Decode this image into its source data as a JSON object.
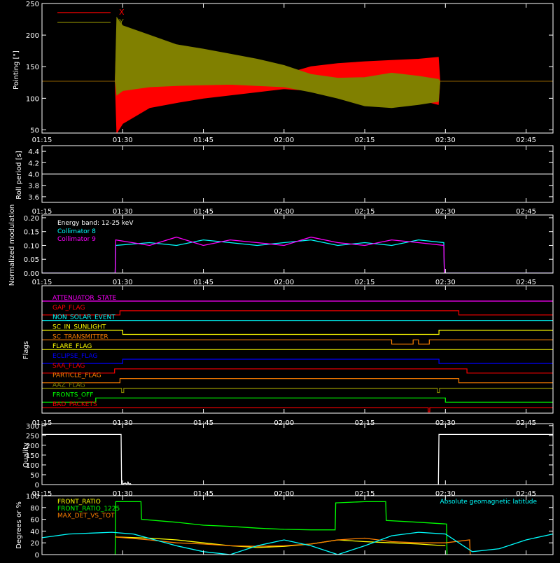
{
  "x_axis": {
    "min": 75,
    "max": 170,
    "ticks": [
      {
        "v": 75,
        "label": "01:15"
      },
      {
        "v": 90,
        "label": "01:30"
      },
      {
        "v": 105,
        "label": "01:45"
      },
      {
        "v": 120,
        "label": "02:00"
      },
      {
        "v": 135,
        "label": "02:15"
      },
      {
        "v": 150,
        "label": "02:30"
      },
      {
        "v": 165,
        "label": "02:45"
      }
    ]
  },
  "chart_data": [
    {
      "id": "pointing",
      "type": "area",
      "ylabel": "Pointing [\"]",
      "ylim": [
        45,
        250
      ],
      "yticks": [
        50,
        100,
        150,
        200,
        250
      ],
      "legend": [
        "X",
        "Y"
      ],
      "series": [
        {
          "name": "X",
          "color": "#ff0000",
          "x": [
            72,
            88.6,
            88.9,
            90,
            95,
            100,
            105,
            110,
            115,
            120,
            125,
            130,
            135,
            140,
            145,
            148.7,
            149,
            172
          ],
          "upper": [
            127,
            127,
            210,
            185,
            170,
            160,
            150,
            142,
            140,
            138,
            150,
            155,
            158,
            160,
            162,
            165,
            127,
            127
          ],
          "lower": [
            127,
            127,
            45,
            60,
            85,
            93,
            100,
            105,
            110,
            115,
            112,
            108,
            103,
            100,
            98,
            90,
            127,
            127
          ]
        },
        {
          "name": "Y",
          "color": "#808000",
          "x": [
            72,
            88.6,
            88.9,
            90,
            95,
            100,
            105,
            110,
            115,
            120,
            125,
            130,
            135,
            140,
            145,
            148.7,
            149,
            172
          ],
          "upper": [
            127,
            127,
            228,
            215,
            200,
            185,
            178,
            170,
            162,
            152,
            138,
            132,
            133,
            140,
            135,
            130,
            127,
            127
          ],
          "lower": [
            127,
            127,
            105,
            112,
            118,
            120,
            121,
            122,
            120,
            118,
            110,
            100,
            88,
            85,
            90,
            95,
            127,
            127
          ]
        }
      ]
    },
    {
      "id": "roll",
      "type": "line",
      "ylabel": "Roll period [s]",
      "ylim": [
        3.5,
        4.5
      ],
      "yticks": [
        3.6,
        3.8,
        4.0,
        4.2,
        4.4
      ],
      "ytick_labels": [
        "3.6",
        "3.8",
        "4.0",
        "4.2",
        "4.4"
      ],
      "series": [
        {
          "name": "",
          "color": "#ffffff",
          "x": [
            72,
            172
          ],
          "y": [
            4.0,
            4.0
          ]
        }
      ]
    },
    {
      "id": "modulation",
      "type": "line",
      "ylabel": "Normalized modulation",
      "ylim": [
        0,
        0.21
      ],
      "yticks": [
        0,
        0.05,
        0.1,
        0.15,
        0.2
      ],
      "ytick_labels": [
        "0.00",
        "0.05",
        "0.10",
        "0.15",
        "0.20"
      ],
      "annotation": "Energy band: 12-25 keV",
      "series": [
        {
          "name": "Collimator 8",
          "color": "#00ffff",
          "x": [
            72,
            88.6,
            88.7,
            95,
            100,
            105,
            110,
            115,
            120,
            125,
            130,
            135,
            140,
            145,
            149.7,
            149.8,
            172
          ],
          "y": [
            0,
            0,
            0.1,
            0.11,
            0.1,
            0.12,
            0.11,
            0.1,
            0.11,
            0.12,
            0.1,
            0.11,
            0.1,
            0.12,
            0.11,
            0,
            0
          ]
        },
        {
          "name": "Collimator 9",
          "color": "#ff00ff",
          "x": [
            72,
            88.6,
            88.7,
            95,
            100,
            105,
            110,
            115,
            120,
            125,
            130,
            135,
            140,
            145,
            149.7,
            149.8,
            172
          ],
          "y": [
            0,
            0,
            0.12,
            0.1,
            0.13,
            0.1,
            0.12,
            0.11,
            0.1,
            0.13,
            0.11,
            0.1,
            0.12,
            0.11,
            0.1,
            0,
            0
          ]
        }
      ]
    },
    {
      "id": "flags",
      "type": "line",
      "ylabel": "Flags",
      "series": [
        {
          "name": "ATTENUATOR_STATE",
          "color": "#ff00ff",
          "x": [
            72,
            172
          ],
          "y": [
            0,
            0
          ]
        },
        {
          "name": "GAP_FLAG",
          "color": "#ff0000",
          "x": [
            72,
            89.5,
            89.5,
            152.5,
            152.5,
            172
          ],
          "y": [
            1,
            1,
            0,
            0,
            1,
            1
          ]
        },
        {
          "name": "NON_SOLAR_EVENT",
          "color": "#00ffff",
          "x": [
            72,
            172
          ],
          "y": [
            0,
            0
          ]
        },
        {
          "name": "SC_IN_SUNLIGHT",
          "color": "#ffff00",
          "x": [
            72,
            90,
            90,
            148.8,
            148.8,
            172
          ],
          "y": [
            0,
            0,
            1,
            1,
            0,
            0
          ]
        },
        {
          "name": "SC_TRANSMITTER",
          "color": "#ff8000",
          "x": [
            72,
            140,
            140,
            144,
            144,
            145,
            145,
            147,
            147,
            172
          ],
          "y": [
            0,
            0,
            1,
            1,
            0,
            0,
            1,
            1,
            0,
            0
          ]
        },
        {
          "name": "FLARE_FLAG",
          "color": "#ffff00",
          "x": [
            72,
            172
          ],
          "y": [
            0,
            0
          ]
        },
        {
          "name": "ECLIPSE_FLAG",
          "color": "#0000ff",
          "x": [
            72,
            90,
            90,
            148.8,
            148.8,
            172
          ],
          "y": [
            1,
            1,
            0,
            0,
            1,
            1
          ]
        },
        {
          "name": "SAA_FLAG",
          "color": "#ff0000",
          "x": [
            72,
            88.5,
            88.5,
            154,
            154,
            172
          ],
          "y": [
            1,
            1,
            0,
            0,
            1,
            1
          ]
        },
        {
          "name": "PARTICLE_FLAG",
          "color": "#ff8000",
          "x": [
            72,
            89.5,
            89.5,
            152.5,
            152.5,
            172
          ],
          "y": [
            1,
            1,
            0,
            0,
            1,
            1
          ]
        },
        {
          "name": "AAZ_FLAG",
          "color": "#808000",
          "x": [
            72,
            89.8,
            89.8,
            90.2,
            90.2,
            148.5,
            148.5,
            148.9,
            148.9,
            172
          ],
          "y": [
            0,
            0,
            1,
            1,
            0,
            0,
            1,
            1,
            0,
            0
          ]
        },
        {
          "name": "FRONTS_OFF",
          "color": "#00ff00",
          "x": [
            72,
            85,
            85,
            150,
            150,
            172
          ],
          "y": [
            1,
            1,
            0,
            0,
            1,
            1
          ]
        },
        {
          "name": "BAD_PACKETS",
          "color": "#ff0000",
          "x": [
            72,
            146.8,
            146.8,
            147.1,
            147.1,
            172
          ],
          "y": [
            0,
            0,
            1,
            1,
            0,
            0
          ]
        }
      ]
    },
    {
      "id": "quality",
      "type": "line",
      "ylabel": "Quality",
      "ylim": [
        0,
        310
      ],
      "yticks": [
        0,
        50,
        100,
        150,
        200,
        250,
        300
      ],
      "series": [
        {
          "name": "",
          "color": "#ffffff",
          "x": [
            72,
            89.7,
            89.8,
            90.5,
            90.8,
            91.0,
            91.2,
            91.4,
            91.6,
            148.7,
            148.8,
            172
          ],
          "y": [
            255,
            255,
            0,
            8,
            0,
            12,
            0,
            5,
            0,
            0,
            255,
            255
          ]
        }
      ]
    },
    {
      "id": "ratios",
      "type": "line",
      "ylabel": "Degrees or %",
      "ylim": [
        0,
        100
      ],
      "yticks": [
        0,
        20,
        40,
        60,
        80,
        100
      ],
      "annotation": "Absolute geomagnetic latitude",
      "series": [
        {
          "name": "FRONT_RATIO",
          "color": "#ffff00",
          "x": [
            88.6,
            95,
            100,
            105,
            110,
            115,
            120,
            125,
            130,
            135,
            140,
            145,
            150
          ],
          "y": [
            30,
            28,
            25,
            20,
            15,
            12,
            14,
            18,
            25,
            22,
            20,
            18,
            15
          ]
        },
        {
          "name": "FRONT_RATIO_1225",
          "color": "#00ff00",
          "x": [
            88.6,
            88.7,
            93.4,
            93.5,
            100,
            105,
            110,
            115,
            120,
            125,
            129.5,
            129.6,
            135,
            138.9,
            139.0,
            145,
            150.2,
            150.3
          ],
          "y": [
            0,
            90,
            90,
            60,
            55,
            50,
            48,
            45,
            43,
            42,
            42,
            88,
            90,
            90,
            58,
            55,
            52,
            0
          ]
        },
        {
          "name": "MAX_DET_VS_TOT",
          "color": "#ff8000",
          "x": [
            88.6,
            95,
            100,
            105,
            110,
            115,
            120,
            125,
            130,
            135,
            140,
            145,
            150,
            154.5,
            154.6
          ],
          "y": [
            30,
            25,
            20,
            18,
            15,
            14,
            15,
            18,
            25,
            28,
            22,
            20,
            20,
            25,
            0
          ]
        },
        {
          "name": "Absolute geomagnetic latitude",
          "color": "#00ffff",
          "x": [
            72,
            80,
            88,
            92,
            96,
            100,
            105,
            110,
            115,
            120,
            125,
            130,
            135,
            140,
            145,
            150,
            155,
            160,
            165,
            170,
            172
          ],
          "y": [
            25,
            35,
            38,
            35,
            25,
            15,
            5,
            0,
            15,
            25,
            15,
            0,
            15,
            32,
            38,
            35,
            5,
            10,
            25,
            35,
            38
          ]
        }
      ]
    }
  ]
}
